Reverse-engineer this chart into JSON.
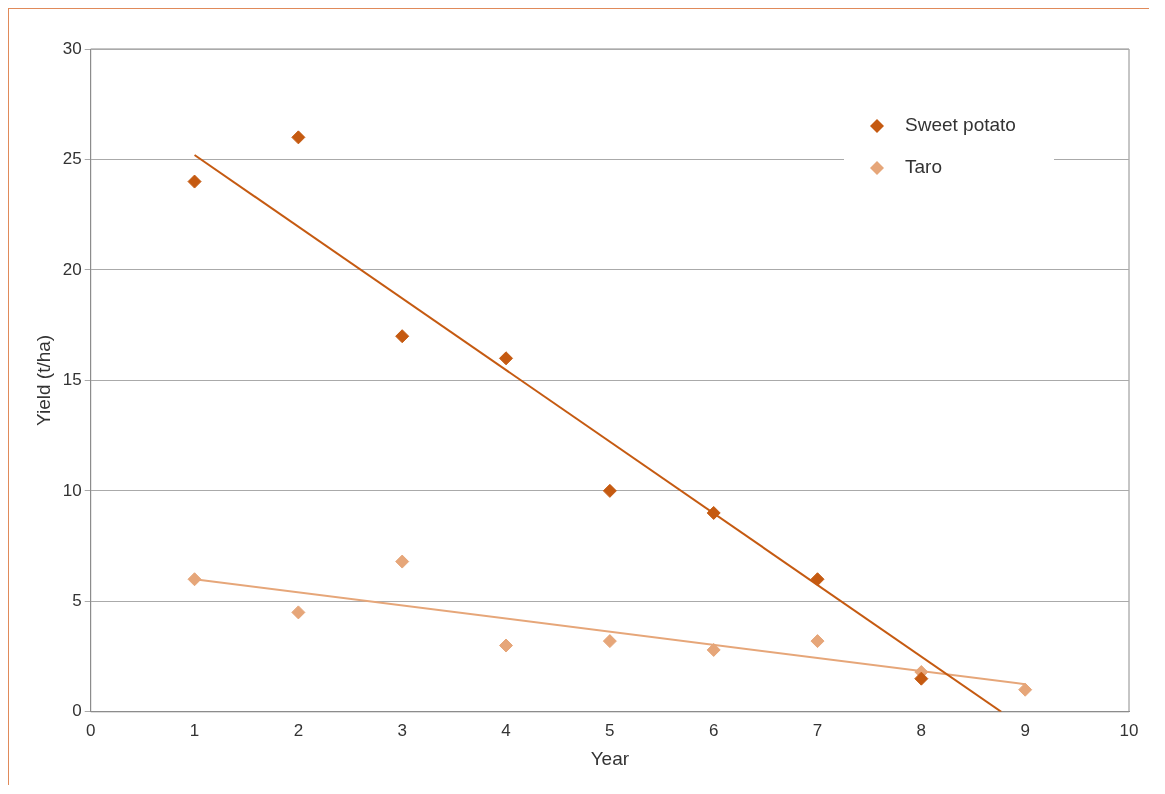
{
  "chart_data": {
    "type": "scatter",
    "xlabel": "Year",
    "ylabel": "Yield (t/ha)",
    "xlim": [
      0,
      10
    ],
    "xticks": [
      0,
      1,
      2,
      3,
      4,
      5,
      6,
      7,
      8,
      9,
      10
    ],
    "ylim": [
      0,
      30
    ],
    "yticks": [
      0,
      5,
      10,
      15,
      20,
      25,
      30
    ],
    "grid": "y",
    "legend": "top right",
    "marker": "diamond",
    "series": [
      {
        "name": "Sweet potato",
        "color": "#c55a11",
        "x": [
          1,
          2,
          3,
          4,
          5,
          6,
          7,
          8
        ],
        "values": [
          24,
          26,
          17,
          16,
          10,
          9,
          6,
          1.5
        ]
      },
      {
        "name": "Taro",
        "color": "#e6a679",
        "x": [
          1,
          2,
          3,
          4,
          5,
          6,
          7,
          8,
          9
        ],
        "values": [
          6,
          4.5,
          6.8,
          3,
          3.2,
          2.8,
          3.2,
          1.8,
          1
        ]
      },
      {
        "type": "line",
        "color": "#c55a11",
        "marker": "none",
        "line_style": "solid",
        "x": [
          1,
          8.77
        ],
        "values": [
          25.2,
          0
        ]
      },
      {
        "type": "line",
        "color": "#e6a679",
        "marker": "none",
        "line_style": "solid",
        "x": [
          1,
          9
        ],
        "values": [
          6,
          1.25
        ]
      }
    ]
  }
}
